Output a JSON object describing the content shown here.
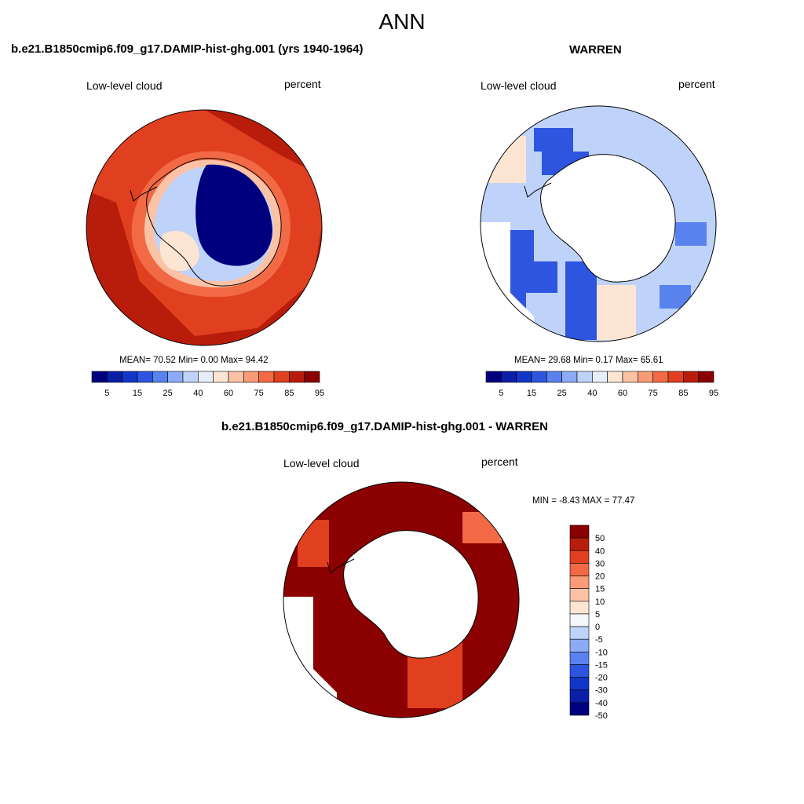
{
  "title": "ANN",
  "panels": [
    {
      "case_title": "b.e21.B1850cmip6.f09_g17.DAMIP-hist-ghg.001 (yrs 1940-1964)",
      "variable": "Low-level cloud",
      "units": "percent",
      "stats": "MEAN=  70.52  Min=   0.00  Max=  94.42"
    },
    {
      "case_title": "WARREN",
      "variable": "Low-level cloud",
      "units": "percent",
      "stats": "MEAN=  29.68  Min=   0.17  Max=  65.61"
    },
    {
      "case_title": "b.e21.B1850cmip6.f09_g17.DAMIP-hist-ghg.001 - WARREN",
      "variable": "Low-level cloud",
      "units": "percent",
      "stats": "MIN =  -8.43 MAX =  77.47"
    }
  ],
  "colorbar_abs": {
    "colors": [
      "#00007f",
      "#0a1fa6",
      "#1236c8",
      "#2e55e0",
      "#5a82ee",
      "#8cabf4",
      "#bfd3fa",
      "#e6eefc",
      "#fde5d3",
      "#fcc2a6",
      "#f99a78",
      "#f26a45",
      "#e0401f",
      "#b81d0b",
      "#8b0000"
    ],
    "tick_labels": [
      "5",
      "15",
      "25",
      "40",
      "60",
      "75",
      "85",
      "95"
    ]
  },
  "colorbar_diff": {
    "colors": [
      "#8b0000",
      "#b81d0b",
      "#e0401f",
      "#f26a45",
      "#f99a78",
      "#fcc2a6",
      "#fde5d3",
      "#f4f6fc",
      "#bfd3fa",
      "#8cabf4",
      "#5a82ee",
      "#2e55e0",
      "#1236c8",
      "#0a1fa6",
      "#00007f"
    ],
    "tick_labels": [
      "50",
      "40",
      "30",
      "20",
      "15",
      "10",
      "5",
      "0",
      "-5",
      "-10",
      "-15",
      "-20",
      "-30",
      "-40",
      "-50"
    ]
  },
  "colors": {
    "land": "#ffffff",
    "coastline": "#000000"
  }
}
